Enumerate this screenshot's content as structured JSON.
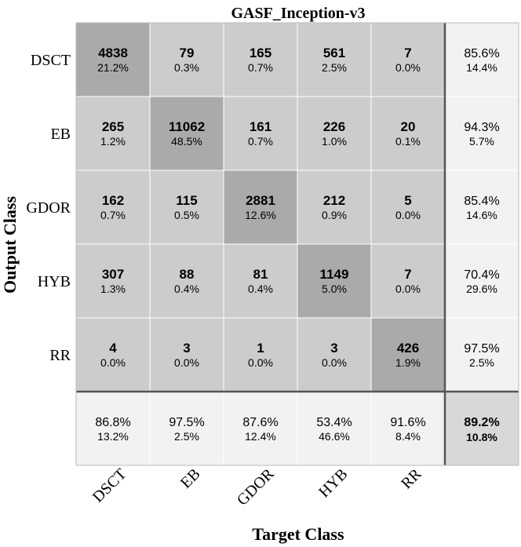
{
  "chart_data": {
    "type": "table",
    "title": "GASF_Inception-v3",
    "xlabel": "Target Class",
    "ylabel": "Output Class",
    "classes": [
      "DSCT",
      "EB",
      "GDOR",
      "HYB",
      "RR"
    ],
    "matrix": [
      [
        4838,
        79,
        165,
        561,
        7
      ],
      [
        265,
        11062,
        161,
        226,
        20
      ],
      [
        162,
        115,
        2881,
        212,
        5
      ],
      [
        307,
        88,
        81,
        1149,
        7
      ],
      [
        4,
        3,
        1,
        3,
        426
      ]
    ],
    "matrix_percent": [
      [
        "21.2%",
        "0.3%",
        "0.7%",
        "2.5%",
        "0.0%"
      ],
      [
        "1.2%",
        "48.5%",
        "0.7%",
        "1.0%",
        "0.1%"
      ],
      [
        "0.7%",
        "0.5%",
        "12.6%",
        "0.9%",
        "0.0%"
      ],
      [
        "1.3%",
        "0.4%",
        "0.4%",
        "5.0%",
        "0.0%"
      ],
      [
        "0.0%",
        "0.0%",
        "0.0%",
        "0.0%",
        "1.9%"
      ]
    ],
    "row_summary": [
      [
        "85.6%",
        "14.4%"
      ],
      [
        "94.3%",
        "5.7%"
      ],
      [
        "85.4%",
        "14.6%"
      ],
      [
        "70.4%",
        "29.6%"
      ],
      [
        "97.5%",
        "2.5%"
      ]
    ],
    "col_summary": [
      [
        "86.8%",
        "13.2%"
      ],
      [
        "97.5%",
        "2.5%"
      ],
      [
        "87.6%",
        "12.4%"
      ],
      [
        "53.4%",
        "46.6%"
      ],
      [
        "91.6%",
        "8.4%"
      ]
    ],
    "overall": [
      "89.2%",
      "10.8%"
    ]
  },
  "colors": {
    "diagonal": "#aaaaaa",
    "offdiagonal": "#cccccc",
    "summary": "#f2f2f2",
    "overall": "#d8d8d8",
    "grid": "#ffffff",
    "separator": "#555555",
    "text": "#000000"
  }
}
